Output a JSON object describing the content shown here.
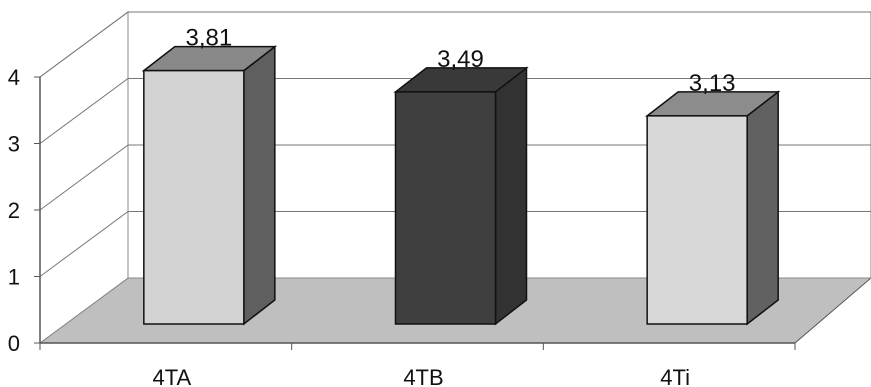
{
  "chart_data": {
    "type": "bar",
    "style": "3d",
    "categories": [
      "4TA",
      "4TB",
      "4Ti"
    ],
    "values": [
      3.81,
      3.49,
      3.13
    ],
    "data_labels": [
      "3,81",
      "3,49",
      "3,13"
    ],
    "bar_colors": [
      "#d3d3d3",
      "#3f3f3f",
      "#d8d8d8"
    ],
    "ylim": [
      0,
      4
    ],
    "yticks": [
      "0",
      "1",
      "2",
      "3",
      "4"
    ],
    "grid": true,
    "legend": "none",
    "title": "",
    "xlabel": "",
    "ylabel": ""
  }
}
